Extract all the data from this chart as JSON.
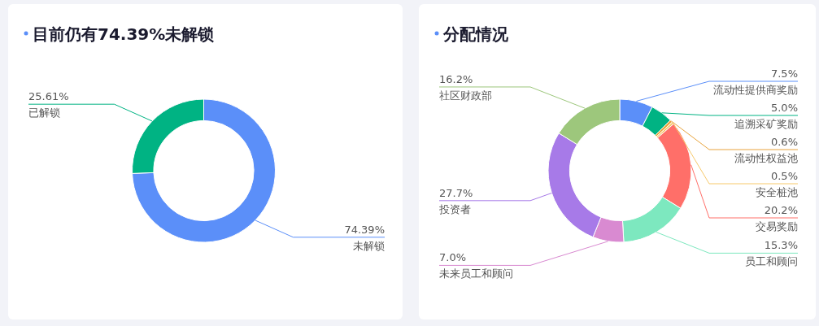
{
  "chart_data": [
    {
      "type": "donut",
      "title": "目前仍有74.39%未解锁",
      "categories": [
        "未解锁",
        "已解锁"
      ],
      "values": [
        74.39,
        25.61
      ],
      "colors": [
        "#5b8ff9",
        "#00b383"
      ],
      "value_labels": [
        "74.39%",
        "25.61%"
      ]
    },
    {
      "type": "donut",
      "title": "分配情况",
      "categories": [
        "流动性提供商奖励",
        "追溯采矿奖励",
        "流动性权益池",
        "安全桩池",
        "交易奖励",
        "员工和顾问",
        "未来员工和顾问",
        "投资者",
        "社区财政部"
      ],
      "values": [
        7.5,
        5.0,
        0.6,
        0.5,
        20.2,
        15.3,
        7.0,
        27.7,
        16.2
      ],
      "colors": [
        "#5b8ff9",
        "#00b383",
        "#e8a33c",
        "#f7c96b",
        "#ff6f69",
        "#7de8bf",
        "#d98ad1",
        "#a77ae8",
        "#9dc77c"
      ],
      "value_labels": [
        "7.5%",
        "5.0%",
        "0.6%",
        "0.5%",
        "20.2%",
        "15.3%",
        "7.0%",
        "27.7%",
        "16.2%"
      ]
    }
  ]
}
